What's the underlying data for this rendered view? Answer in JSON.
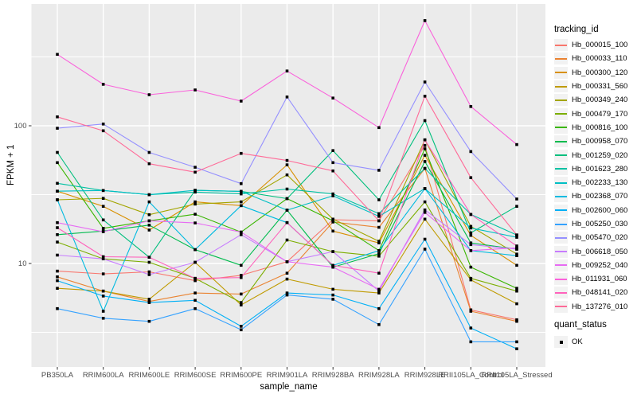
{
  "chart_data": {
    "type": "line",
    "title": "",
    "xlabel": "sample_name",
    "ylabel": "FPKM + 1",
    "y_scale": "log10",
    "ylim": [
      1.8,
      750
    ],
    "grid": true,
    "legend_position": "right",
    "panel_bg": "#EBEBEB",
    "grid_color": "#FFFFFF",
    "tick_color": "#333333",
    "tick_label_color": "#4D4D4D",
    "point_color": "#000000",
    "legend_key_bg": "#F2F2F2",
    "y_ticks": [
      {
        "value": 10,
        "label": "10"
      },
      {
        "value": 100,
        "label": "100"
      }
    ],
    "y_minor_ticks": [
      3.162,
      31.62,
      316.2
    ],
    "categories": [
      "PB350LA",
      "RRIM600LA",
      "RRIM600LE",
      "RRIM600SE",
      "RRIM600PE",
      "RRIM901LA",
      "RRIM928BA",
      "RRIM928LA",
      "RRIM928LE",
      "RRII105LA_Control",
      "RRII105LA_Stressed"
    ],
    "legend_title": "tracking_id",
    "legend2_title": "quant_status",
    "legend2_items": [
      {
        "label": "OK",
        "marker": "black-square"
      }
    ],
    "series": [
      {
        "name": "Hb_000015_100",
        "color": "#F8766D",
        "values": [
          8.8,
          8.4,
          8.7,
          7.5,
          8.2,
          10.3,
          20.8,
          20.4,
          72,
          4.6,
          3.9
        ]
      },
      {
        "name": "Hb_000033_110",
        "color": "#EA8331",
        "values": [
          8.0,
          6.3,
          5.3,
          6.1,
          6.0,
          8.5,
          20.0,
          18.3,
          49,
          4.5,
          3.8
        ]
      },
      {
        "name": "Hb_000300_120",
        "color": "#D89000",
        "values": [
          33.5,
          26,
          17.5,
          28,
          26.3,
          52,
          17.2,
          14.1,
          61,
          16,
          9.7
        ]
      },
      {
        "name": "Hb_000331_560",
        "color": "#C09B00",
        "values": [
          6.6,
          6.3,
          5.5,
          10.2,
          5.0,
          7.7,
          6.5,
          6.1,
          21,
          7.6,
          5.1
        ]
      },
      {
        "name": "Hb_000349_240",
        "color": "#A3A500",
        "values": [
          29,
          29.7,
          22.6,
          27,
          28,
          44,
          21,
          14.5,
          79,
          18.6,
          11.7
        ]
      },
      {
        "name": "Hb_000479_170",
        "color": "#7CAE00",
        "values": [
          14.3,
          10.8,
          10.2,
          7.8,
          5.2,
          14.8,
          12.2,
          11.3,
          28,
          7.8,
          6.3
        ]
      },
      {
        "name": "Hb_000816_100",
        "color": "#39B600",
        "values": [
          54,
          18,
          20.4,
          22.8,
          16.9,
          29.6,
          20.4,
          12.4,
          68,
          9.4,
          6.6
        ]
      },
      {
        "name": "Hb_000958_070",
        "color": "#00BB4E",
        "values": [
          16.2,
          17.2,
          19,
          12.6,
          9.7,
          24.4,
          9.4,
          11.8,
          55,
          14.1,
          12.7
        ]
      },
      {
        "name": "Hb_001259_020",
        "color": "#00BF7D",
        "values": [
          64,
          20.7,
          11.1,
          34,
          33.4,
          29.6,
          66,
          29,
          109,
          16.7,
          26
        ]
      },
      {
        "name": "Hb_001623_280",
        "color": "#00C1A3",
        "values": [
          38.2,
          33.9,
          31.6,
          33,
          32,
          34.7,
          32,
          23,
          49,
          22.7,
          16.1
        ]
      },
      {
        "name": "Hb_002233_130",
        "color": "#00BFC4",
        "values": [
          33.5,
          33.9,
          31.6,
          34,
          33.4,
          24.4,
          31,
          22,
          35,
          18.1,
          15.5
        ]
      },
      {
        "name": "Hb_002368_070",
        "color": "#00BAE0",
        "values": [
          29,
          4.5,
          28,
          12.6,
          26.3,
          19.8,
          9.7,
          12.4,
          35,
          12.4,
          11.4
        ]
      },
      {
        "name": "Hb_002600_060",
        "color": "#00B0F6",
        "values": [
          7.5,
          5.8,
          5.2,
          5.4,
          3.5,
          6.1,
          5.9,
          4.7,
          15,
          3.4,
          2.4
        ]
      },
      {
        "name": "Hb_005250_030",
        "color": "#35A2FF",
        "values": [
          4.7,
          4.0,
          3.8,
          4.7,
          3.3,
          5.9,
          5.5,
          3.6,
          12.7,
          2.7,
          2.7
        ]
      },
      {
        "name": "Hb_005470_020",
        "color": "#9590FF",
        "values": [
          96,
          103,
          64,
          50,
          38,
          162,
          54,
          47.5,
          208,
          65,
          29.4
        ]
      },
      {
        "name": "Hb_006618_050",
        "color": "#C77CFF",
        "values": [
          11.5,
          10.8,
          8.3,
          10.2,
          16.2,
          10.3,
          12.2,
          6.3,
          24.5,
          13.7,
          12.7
        ]
      },
      {
        "name": "Hb_009252_040",
        "color": "#E76BF3",
        "values": [
          19.8,
          17.0,
          20.4,
          19.7,
          16.9,
          10.3,
          9.4,
          6.5,
          23.5,
          12.4,
          13.0
        ]
      },
      {
        "name": "Hb_011931_060",
        "color": "#FA62DB",
        "values": [
          330,
          200,
          168,
          182,
          151,
          250,
          159,
          97,
          580,
          138,
          73
        ]
      },
      {
        "name": "Hb_048141_020",
        "color": "#FF62BC",
        "values": [
          18.2,
          11.2,
          11.1,
          7.8,
          7.9,
          19.8,
          9.7,
          8.5,
          79,
          22.7,
          13.4
        ]
      },
      {
        "name": "Hb_137276_010",
        "color": "#FF6A98",
        "values": [
          116,
          92,
          53,
          46,
          63,
          56,
          47,
          20.4,
          164,
          42,
          16.1
        ]
      }
    ]
  }
}
